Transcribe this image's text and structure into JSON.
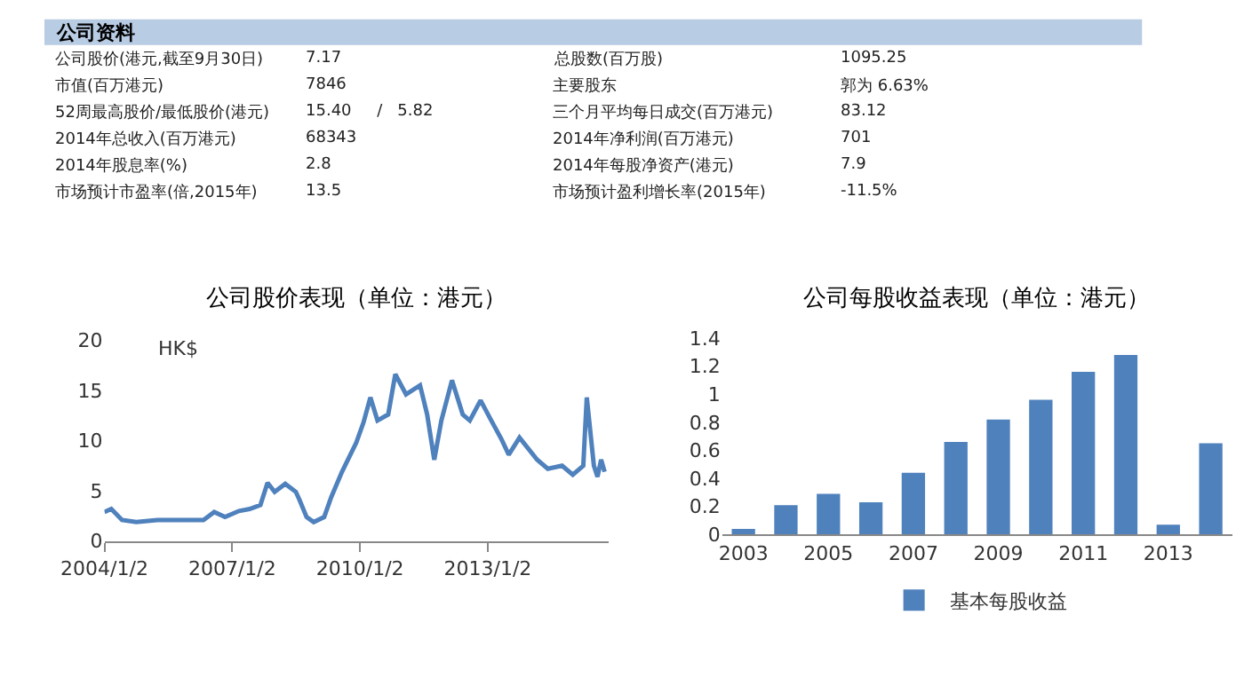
{
  "chart_data": [
    {
      "type": "other",
      "title": "公司资料",
      "annotations": [
        "公司股价(港元,截至9月30日)",
        "7.17",
        "总股数(百万股)",
        "1095.25",
        "市值(百万港元)",
        "7846",
        "主要股东",
        "郭为 6.63%",
        "52周最高股价/最低股价(港元)",
        "15.40     /   5.82",
        "三个月平均每日成交(百万港元)",
        "83.12",
        "2014年总收入(百万港元)",
        "68343",
        "2014年净利润(百万港元)",
        "701",
        "2014年股息率(%)",
        "2.8",
        "2014年每股净资产(港元)",
        "7.9",
        "市场预计市盈率(倍,2015年)",
        "13.5",
        "市场预计盈利增长率(2015年)",
        "-11.5%"
      ]
    },
    {
      "type": "line",
      "title": "公司股价表现（单位：港元）",
      "ylabel": "HK$",
      "color": "#4f81bd",
      "legend": false,
      "x": [
        "2004-01-02",
        "2004-03",
        "2004-06",
        "2004-10",
        "2005-04",
        "2005-11",
        "2006-05",
        "2006-08",
        "2006-11",
        "2007-03",
        "2007-06",
        "2007-09",
        "2007-11",
        "2008-01",
        "2008-04",
        "2008-07",
        "2008-08",
        "2008-10",
        "2008-12",
        "2009-03",
        "2009-05",
        "2009-08",
        "2009-12",
        "2010-02",
        "2010-04",
        "2010-06",
        "2010-09",
        "2010-11",
        "2011-02",
        "2011-06",
        "2011-08",
        "2011-10",
        "2011-12",
        "2012-03",
        "2012-06",
        "2012-08",
        "2012-11",
        "2013-02",
        "2013-05",
        "2013-07",
        "2013-10",
        "2014-03",
        "2014-06",
        "2014-10",
        "2015-01",
        "2015-04",
        "2015-05",
        "2015-07",
        "2015-08",
        "2015-09",
        "2015-10"
      ],
      "values": [
        2.9,
        3.2,
        2.1,
        1.9,
        2.1,
        2.1,
        2.1,
        2.9,
        2.4,
        3.0,
        3.2,
        3.6,
        5.8,
        4.9,
        5.7,
        4.9,
        4.1,
        2.4,
        1.9,
        2.4,
        4.4,
        6.9,
        9.8,
        11.8,
        14.3,
        12.0,
        12.6,
        16.6,
        14.6,
        15.5,
        12.6,
        8.1,
        12.0,
        16.0,
        12.6,
        12.0,
        14.0,
        12.0,
        10.1,
        8.6,
        10.3,
        8.1,
        7.2,
        7.5,
        6.6,
        7.5,
        14.3,
        7.5,
        6.4,
        8.1,
        6.9
      ],
      "xlim": [
        "2004-01-02",
        "2015-11"
      ],
      "xticks": [
        {
          "value": "2004-01-02",
          "label": "2004/1/2"
        },
        {
          "value": "2007-01-02",
          "label": "2007/1/2"
        },
        {
          "value": "2010-01-02",
          "label": "2010/1/2"
        },
        {
          "value": "2013-01-02",
          "label": "2013/1/2"
        }
      ],
      "ylim": [
        0,
        20
      ],
      "yticks": [
        0,
        5,
        10,
        15,
        20
      ]
    },
    {
      "type": "bar",
      "title": "公司每股收益表现（单位：港元）",
      "legend": "bottom",
      "categories": [
        "2003",
        null,
        "2005",
        null,
        "2007",
        null,
        "2009",
        null,
        "2011",
        null,
        "2013",
        null
      ],
      "series": [
        {
          "name": "基本每股收益",
          "color": "#4f81bd",
          "values": [
            0.04,
            0.21,
            0.29,
            0.23,
            0.44,
            0.66,
            0.82,
            0.96,
            1.16,
            1.28,
            0.07,
            0.65
          ]
        }
      ],
      "ylim": [
        0,
        1.4
      ],
      "yticks": [
        0,
        0.2,
        0.4,
        0.6,
        0.8,
        1,
        1.2,
        1.4
      ]
    }
  ]
}
